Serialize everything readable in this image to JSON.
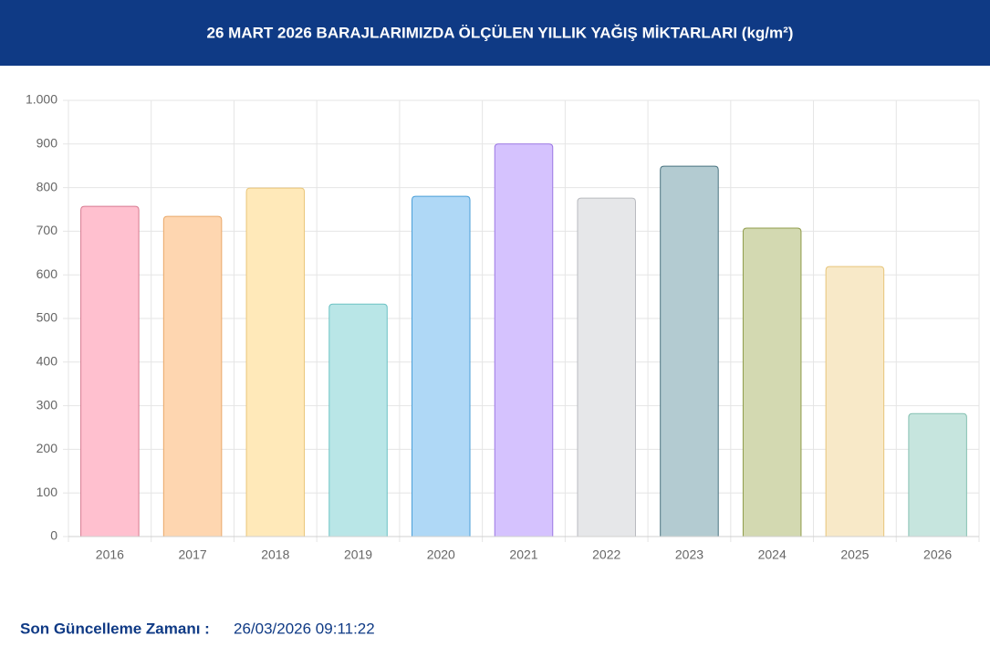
{
  "chart_data": {
    "type": "bar",
    "title": "26 MART 2026 BARAJLARIMIZDA ÖLÇÜLEN YILLIK YAĞIŞ MİKTARLARI (kg/m²)",
    "categories": [
      "2016",
      "2017",
      "2018",
      "2019",
      "2020",
      "2021",
      "2022",
      "2023",
      "2024",
      "2025",
      "2026"
    ],
    "values": [
      757,
      734,
      799,
      533,
      780,
      900,
      776,
      849,
      707,
      619,
      282
    ],
    "colors": [
      "#ffc0cf",
      "#fed6b0",
      "#ffe9b9",
      "#b9e6e7",
      "#afd8f6",
      "#d5c2fe",
      "#e6e7e9",
      "#b3cbd1",
      "#d3d9b1",
      "#f8e9c8",
      "#c6e5de"
    ],
    "border_colors": [
      "#d77a90",
      "#e9a86a",
      "#e9c67a",
      "#6cc2c4",
      "#4a9fd8",
      "#9c78e4",
      "#b8babf",
      "#4a7380",
      "#8f9c4a",
      "#e7c57a",
      "#86c1b2"
    ],
    "ylim": [
      0,
      1000
    ],
    "yticks": [
      0,
      100,
      200,
      300,
      400,
      500,
      600,
      700,
      800,
      900,
      {
        "value": 1000,
        "label": "1.000"
      }
    ],
    "grid": true
  },
  "footer": {
    "label": "Son Güncelleme Zamanı :",
    "value": "26/03/2026 09:11:22"
  }
}
